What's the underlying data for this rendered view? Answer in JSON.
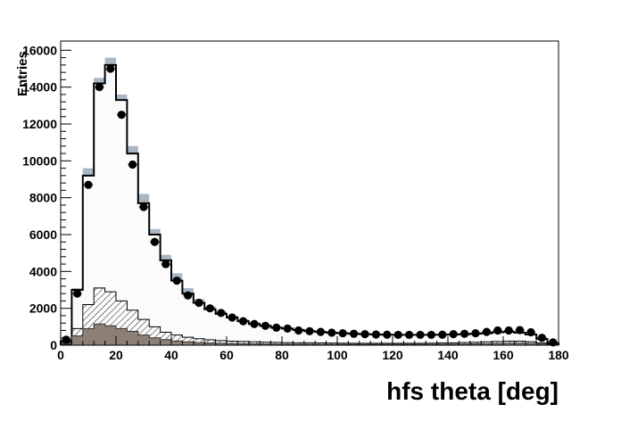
{
  "chart_data": {
    "type": "histogram",
    "title": "",
    "xlabel": "hfs theta [deg]",
    "ylabel": "Entries",
    "xlim": [
      0,
      180
    ],
    "ylim": [
      0,
      16500
    ],
    "x_ticks": [
      0,
      20,
      40,
      60,
      80,
      100,
      120,
      140,
      160,
      180
    ],
    "y_ticks": [
      0,
      2000,
      4000,
      6000,
      8000,
      10000,
      12000,
      14000,
      16000
    ],
    "grid": false,
    "legend": "none",
    "bin_edges": [
      0,
      4,
      8,
      12,
      16,
      20,
      24,
      28,
      32,
      36,
      40,
      44,
      48,
      52,
      56,
      60,
      64,
      68,
      72,
      76,
      80,
      84,
      88,
      92,
      96,
      100,
      104,
      108,
      112,
      116,
      120,
      124,
      128,
      132,
      136,
      140,
      144,
      148,
      152,
      156,
      160,
      164,
      168,
      172,
      176,
      180
    ],
    "series": [
      {
        "style": "open-histogram-black",
        "values": [
          200,
          3000,
          9200,
          14200,
          15200,
          13300,
          10400,
          7700,
          6000,
          4600,
          3500,
          2800,
          2300,
          1950,
          1700,
          1500,
          1300,
          1150,
          1050,
          950,
          900,
          830,
          760,
          720,
          680,
          650,
          620,
          600,
          580,
          570,
          560,
          560,
          560,
          560,
          570,
          580,
          590,
          620,
          650,
          700,
          720,
          680,
          580,
          330,
          100
        ]
      },
      {
        "style": "grey-band",
        "values": [
          300,
          3100,
          9600,
          14500,
          15600,
          13600,
          10800,
          8200,
          6300,
          4900,
          3900,
          3100,
          2500,
          2100,
          1850,
          1600,
          1400,
          1250,
          1120,
          1010,
          950,
          870,
          800,
          760,
          720,
          690,
          660,
          630,
          610,
          600,
          590,
          590,
          590,
          590,
          600,
          610,
          620,
          650,
          680,
          730,
          750,
          710,
          610,
          350,
          120
        ]
      },
      {
        "style": "hatched",
        "values": [
          100,
          900,
          2200,
          3100,
          2900,
          2400,
          1900,
          1400,
          1000,
          700,
          550,
          430,
          350,
          290,
          250,
          220,
          200,
          180,
          165,
          150,
          140,
          130,
          125,
          120,
          115,
          110,
          105,
          100,
          100,
          100,
          100,
          100,
          105,
          110,
          120,
          130,
          145,
          160,
          180,
          200,
          220,
          220,
          190,
          120,
          40
        ]
      },
      {
        "style": "filled-brown",
        "values": [
          50,
          500,
          900,
          1150,
          1050,
          900,
          750,
          550,
          400,
          300,
          230,
          180,
          140,
          120,
          100,
          90,
          80,
          70,
          65,
          60,
          55,
          50,
          48,
          45,
          43,
          42,
          40,
          40,
          40,
          40,
          40,
          40,
          42,
          45,
          50,
          55,
          60,
          70,
          80,
          95,
          110,
          110,
          90,
          55,
          20
        ]
      },
      {
        "style": "data-points",
        "values": [
          300,
          2800,
          8700,
          14000,
          15000,
          12500,
          9800,
          7500,
          5600,
          4400,
          3500,
          2700,
          2300,
          2000,
          1750,
          1500,
          1300,
          1150,
          1050,
          950,
          900,
          800,
          760,
          720,
          680,
          650,
          620,
          600,
          580,
          570,
          560,
          560,
          560,
          560,
          570,
          600,
          620,
          650,
          720,
          800,
          800,
          820,
          700,
          400,
          150
        ]
      }
    ]
  }
}
